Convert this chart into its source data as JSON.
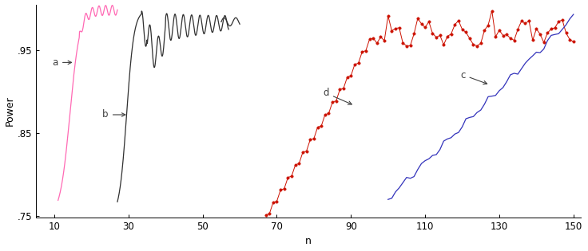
{
  "title": "",
  "xlabel": "n",
  "ylabel": "Power",
  "xlim": [
    5,
    152
  ],
  "ylim": [
    0.748,
    1.005
  ],
  "yticks": [
    0.75,
    0.85,
    0.95
  ],
  "ytick_labels": [
    ".75",
    ".85",
    ".95"
  ],
  "xticks": [
    10,
    30,
    50,
    70,
    90,
    110,
    130,
    150
  ],
  "background_color": "#ffffff",
  "curve_a_color": "#ff69b4",
  "curve_b_color": "#303030",
  "curve_c_color": "#3333bb",
  "curve_d_color": "#cc1100"
}
